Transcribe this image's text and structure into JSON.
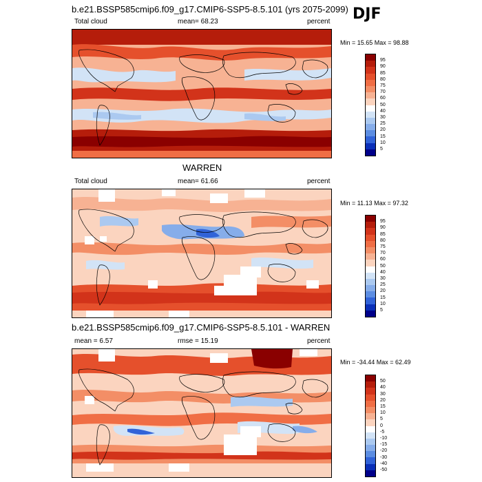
{
  "season": "DJF",
  "panels": [
    {
      "title": "b.e21.BSSP585cmip6.f09_g17.CMIP6-SSP5-8.5.101 (yrs 2075-2099)",
      "left_label": "Total cloud",
      "center_label": "mean=  68.23",
      "right_label": "percent",
      "minmax": "Min =  15.65 Max =  98.88",
      "colorbar": {
        "labels": [
          "95",
          "90",
          "85",
          "80",
          "75",
          "70",
          "60",
          "50",
          "40",
          "30",
          "25",
          "20",
          "15",
          "10",
          "5"
        ],
        "colors": [
          "#8a0000",
          "#b51d0b",
          "#d2331a",
          "#e5502c",
          "#f06e45",
          "#f38e66",
          "#f7b293",
          "#fbd4bf",
          "#ffffff",
          "#d2e3f6",
          "#abc9f0",
          "#86adea",
          "#5c8de2",
          "#3163d8",
          "#0a2fb8",
          "#00008a"
        ]
      }
    },
    {
      "title": "WARREN",
      "left_label": "Total cloud",
      "center_label": "mean=  61.66",
      "right_label": "percent",
      "minmax": "Min =  11.13 Max =  97.32",
      "colorbar": {
        "labels": [
          "95",
          "90",
          "85",
          "80",
          "75",
          "70",
          "60",
          "50",
          "40",
          "30",
          "25",
          "20",
          "15",
          "10",
          "5"
        ],
        "colors": [
          "#8a0000",
          "#b51d0b",
          "#d2331a",
          "#e5502c",
          "#f06e45",
          "#f38e66",
          "#f7b293",
          "#fbd4bf",
          "#ffffff",
          "#d2e3f6",
          "#abc9f0",
          "#86adea",
          "#5c8de2",
          "#3163d8",
          "#0a2fb8",
          "#00008a"
        ]
      }
    },
    {
      "title": "b.e21.BSSP585cmip6.f09_g17.CMIP6-SSP5-8.5.101 - WARREN",
      "left_label": "mean =   6.57",
      "center_label": "rmse =  15.19",
      "right_label": "percent",
      "minmax": "Min = -34.44 Max =  62.49",
      "colorbar": {
        "labels": [
          "50",
          "40",
          "30",
          "20",
          "15",
          "10",
          "5",
          "0",
          "-5",
          "-10",
          "-15",
          "-20",
          "-30",
          "-40",
          "-50"
        ],
        "colors": [
          "#8a0000",
          "#b51d0b",
          "#d2331a",
          "#e5502c",
          "#f06e45",
          "#f38e66",
          "#f7b293",
          "#fbd4bf",
          "#ffffff",
          "#d2e3f6",
          "#abc9f0",
          "#86adea",
          "#5c8de2",
          "#3163d8",
          "#0a2fb8",
          "#00008a"
        ]
      }
    }
  ]
}
